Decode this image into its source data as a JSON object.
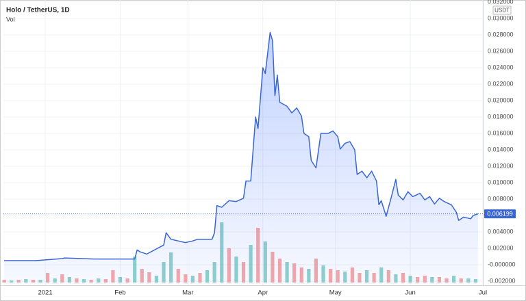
{
  "chart_data": {
    "type": "line",
    "title": "Holo / TetherUS, 1D",
    "volume_label": "Vol",
    "currency": "USDT",
    "xlim": [
      -17.3,
      181
    ],
    "xticks": [
      {
        "value": 0,
        "label": "2021"
      },
      {
        "value": 31,
        "label": "Feb"
      },
      {
        "value": 59,
        "label": "Mar"
      },
      {
        "value": 90,
        "label": "Apr"
      },
      {
        "value": 120,
        "label": "May"
      },
      {
        "value": 151,
        "label": "Jun"
      },
      {
        "value": 181,
        "label": "Jul"
      }
    ],
    "ylim": [
      -0.00233,
      0.03183
    ],
    "yticks": [
      {
        "value": -0.002,
        "label": "-0.002000"
      },
      {
        "value": 0,
        "label": "-0.000000"
      },
      {
        "value": 0.002,
        "label": "0.002000"
      },
      {
        "value": 0.004,
        "label": "0.004000"
      },
      {
        "value": 0.006,
        "label": "0.006000"
      },
      {
        "value": 0.008,
        "label": "0.008000"
      },
      {
        "value": 0.01,
        "label": "0.010000"
      },
      {
        "value": 0.012,
        "label": "0.012000"
      },
      {
        "value": 0.014,
        "label": "0.014000"
      },
      {
        "value": 0.016,
        "label": "0.016000"
      },
      {
        "value": 0.018,
        "label": "0.018000"
      },
      {
        "value": 0.02,
        "label": "0.020000"
      },
      {
        "value": 0.022,
        "label": "0.022000"
      },
      {
        "value": 0.024,
        "label": "0.024000"
      },
      {
        "value": 0.026,
        "label": "0.026000"
      },
      {
        "value": 0.028,
        "label": "0.028000"
      },
      {
        "value": 0.03,
        "label": "0.030000"
      },
      {
        "value": 0.032,
        "label": "0.032000"
      }
    ],
    "grid": true,
    "series": [
      {
        "color": "#3a66d4",
        "x": [
          -17,
          -4,
          7,
          8,
          20,
          37,
          38,
          39,
          42,
          49,
          50,
          52,
          55,
          58,
          61,
          63,
          69,
          70,
          71,
          73,
          76,
          79,
          82,
          83,
          85,
          87,
          88,
          90,
          91,
          93,
          94,
          95,
          96,
          97,
          100,
          102,
          104,
          106,
          107,
          109,
          110,
          112,
          114,
          117,
          119,
          121,
          122,
          124,
          126,
          128,
          129,
          131,
          133,
          135,
          137,
          138,
          139,
          141,
          143,
          145,
          146,
          148,
          150,
          152,
          155,
          157,
          159,
          161,
          163,
          165,
          168,
          170,
          171,
          173,
          176,
          177,
          179
        ],
        "values": [
          0.0005,
          0.0005,
          0.00075,
          0.00083,
          0.0007,
          0.0007,
          0.0018,
          0.0016,
          0.0013,
          0.0024,
          0.0039,
          0.0031,
          0.0029,
          0.0027,
          0.0029,
          0.0031,
          0.0031,
          0.0039,
          0.0072,
          0.007,
          0.0078,
          0.0077,
          0.0081,
          0.0102,
          0.0102,
          0.018,
          0.0166,
          0.024,
          0.0233,
          0.0283,
          0.0273,
          0.0206,
          0.0231,
          0.0198,
          0.0193,
          0.0185,
          0.0191,
          0.0181,
          0.016,
          0.0156,
          0.0127,
          0.0118,
          0.016,
          0.016,
          0.0163,
          0.0156,
          0.0141,
          0.0148,
          0.015,
          0.014,
          0.011,
          0.0114,
          0.0106,
          0.0114,
          0.0102,
          0.0073,
          0.0078,
          0.0059,
          0.0081,
          0.0104,
          0.0085,
          0.0079,
          0.0089,
          0.0083,
          0.0087,
          0.0079,
          0.0083,
          0.0074,
          0.0081,
          0.0077,
          0.0073,
          0.0064,
          0.0054,
          0.0058,
          0.0056,
          0.006,
          0.006199
        ]
      }
    ],
    "volume": {
      "axis": "y2",
      "x": [
        -17,
        -14,
        -11,
        -8,
        -5,
        -2,
        1,
        4,
        7,
        10,
        13,
        16,
        19,
        22,
        25,
        28,
        31,
        34,
        37,
        40,
        43,
        46,
        49,
        52,
        55,
        58,
        61,
        64,
        67,
        70,
        73,
        76,
        79,
        82,
        85,
        88,
        91,
        94,
        97,
        100,
        103,
        106,
        109,
        112,
        115,
        118,
        121,
        124,
        127,
        130,
        133,
        136,
        139,
        142,
        145,
        148,
        151,
        154,
        157,
        160,
        163,
        166,
        169,
        172,
        175,
        178
      ],
      "values": [
        4,
        3,
        4,
        5,
        4,
        4,
        14,
        6,
        12,
        8,
        6,
        5,
        4,
        6,
        5,
        18,
        8,
        6,
        38,
        20,
        15,
        10,
        30,
        44,
        20,
        12,
        10,
        14,
        18,
        30,
        88,
        50,
        38,
        30,
        55,
        80,
        60,
        45,
        35,
        30,
        28,
        22,
        20,
        35,
        25,
        20,
        18,
        16,
        22,
        14,
        18,
        14,
        22,
        18,
        12,
        14,
        10,
        8,
        10,
        8,
        8,
        6,
        10,
        6,
        6,
        5
      ],
      "colors": [
        "#ef5350",
        "#26a69a",
        "#ef5350",
        "#26a69a",
        "#ef5350",
        "#26a69a",
        "#ef5350",
        "#26a69a",
        "#ef5350",
        "#26a69a",
        "#ef5350",
        "#26a69a",
        "#ef5350",
        "#26a69a",
        "#ef5350",
        "#ef5350",
        "#26a69a",
        "#ef5350",
        "#26a69a",
        "#ef5350",
        "#ef5350",
        "#26a69a",
        "#26a69a",
        "#26a69a",
        "#ef5350",
        "#ef5350",
        "#26a69a",
        "#ef5350",
        "#26a69a",
        "#26a69a",
        "#26a69a",
        "#ef5350",
        "#26a69a",
        "#ef5350",
        "#26a69a",
        "#ef5350",
        "#26a69a",
        "#ef5350",
        "#ef5350",
        "#26a69a",
        "#ef5350",
        "#ef5350",
        "#26a69a",
        "#ef5350",
        "#26a69a",
        "#ef5350",
        "#ef5350",
        "#26a69a",
        "#ef5350",
        "#ef5350",
        "#26a69a",
        "#ef5350",
        "#26a69a",
        "#ef5350",
        "#26a69a",
        "#ef5350",
        "#26a69a",
        "#ef5350",
        "#ef5350",
        "#26a69a",
        "#ef5350",
        "#ef5350",
        "#26a69a",
        "#ef5350",
        "#26a69a",
        "#26a69a"
      ]
    },
    "y2lim": [
      0,
      100
    ]
  }
}
